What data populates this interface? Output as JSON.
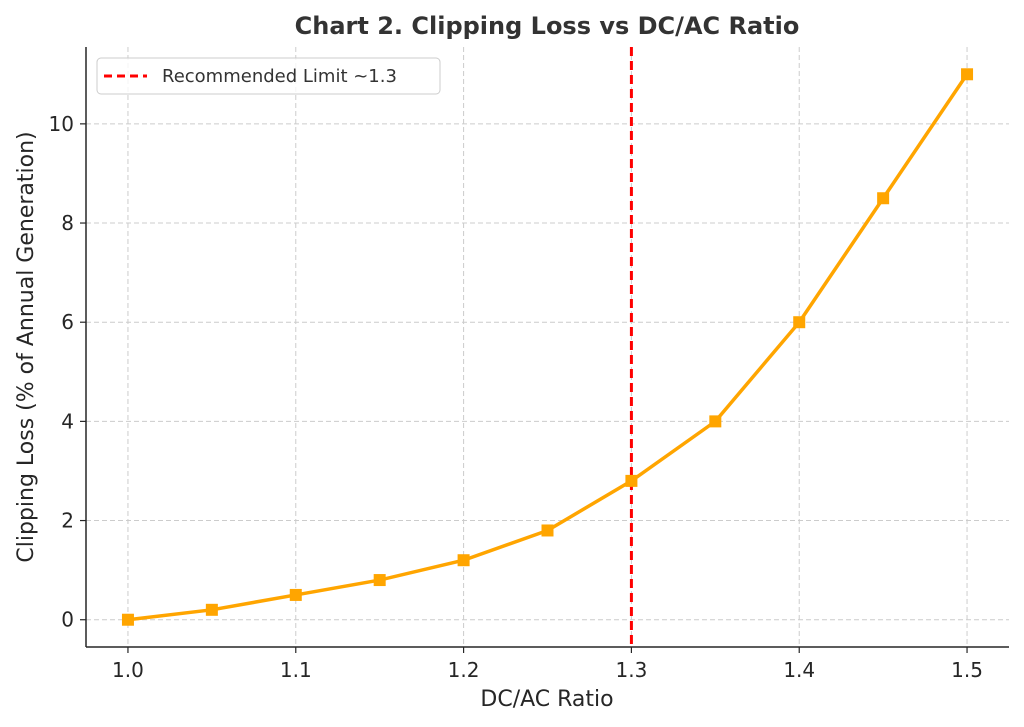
{
  "chart_data": {
    "type": "line",
    "title": "Chart 2. Clipping Loss vs DC/AC Ratio",
    "xlabel": "DC/AC Ratio",
    "ylabel": "Clipping Loss (% of Annual Generation)",
    "x": [
      1.0,
      1.05,
      1.1,
      1.15,
      1.2,
      1.25,
      1.3,
      1.35,
      1.4,
      1.45,
      1.5
    ],
    "series": [
      {
        "values": [
          0,
          0.2,
          0.5,
          0.8,
          1.2,
          1.8,
          2.8,
          4.0,
          6.0,
          8.5,
          11.0
        ],
        "color": "#FFA500",
        "marker": "square"
      }
    ],
    "reference_line": {
      "axis": "x",
      "value": 1.3,
      "name": "Recommended Limit ~1.3",
      "color": "#FF0000",
      "style": "dashed"
    },
    "xlim": [
      0.975,
      1.525
    ],
    "ylim": [
      -0.55,
      11.55
    ],
    "xticks": [
      "1.0",
      "1.1",
      "1.2",
      "1.3",
      "1.4",
      "1.5"
    ],
    "yticks": [
      "0",
      "2",
      "4",
      "6",
      "8",
      "10"
    ],
    "grid": true,
    "legend": "top-left"
  }
}
